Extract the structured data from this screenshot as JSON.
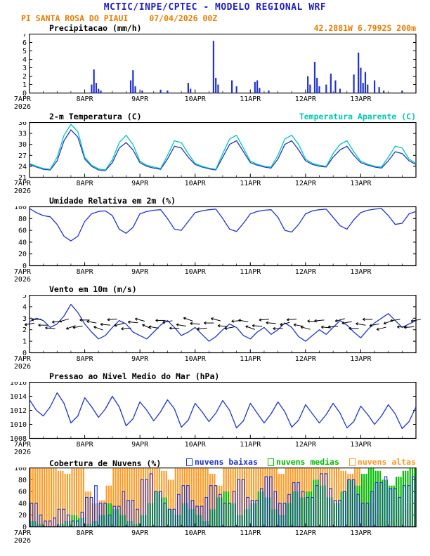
{
  "colors": {
    "title_blue": "#2020c8",
    "subtitle_orange": "#e87c00",
    "line_blue": "#2233cc",
    "apparent_cyan": "#00c8b4",
    "cloud_green": "#00bb00",
    "cloud_orange": "#ff9922"
  },
  "header": {
    "title": "MCTIC/INPE/CPTEC - MODELO REGIONAL WRF",
    "station": "PI SANTA ROSA DO PIAUI",
    "run": "07/04/2026 00Z",
    "coords": "42.2881W 6.7992S 200m"
  },
  "x_axis": {
    "labels": [
      "7APR",
      "8APR",
      "9APR",
      "10APR",
      "11APR",
      "12APR",
      "13APR"
    ],
    "year": "2026",
    "hours_total": 168,
    "tick_interval_hours": 24
  },
  "chart_data": [
    {
      "type": "bar",
      "title": "Precipitacao (mm/h)",
      "ylabel": "mm/h",
      "ylim": [
        0,
        7
      ],
      "yticks": [
        0,
        1,
        2,
        3,
        4,
        5,
        6,
        7
      ],
      "color": "#2233cc",
      "t": [
        27,
        28,
        29,
        30,
        31,
        44,
        45,
        46,
        49,
        57,
        60,
        69,
        70,
        80,
        81,
        82,
        88,
        90,
        98,
        99,
        100,
        104,
        121,
        122,
        124,
        125,
        126,
        129,
        131,
        133,
        135,
        141,
        143,
        144,
        145,
        146,
        147,
        150,
        152,
        154,
        162
      ],
      "v": [
        1.0,
        2.8,
        1.2,
        0.5,
        0.3,
        1.5,
        2.7,
        0.8,
        0.3,
        0.4,
        0.3,
        1.2,
        0.5,
        6.2,
        1.8,
        1.0,
        1.5,
        0.8,
        1.3,
        1.5,
        0.6,
        0.3,
        2.0,
        1.0,
        3.7,
        1.8,
        0.8,
        1.0,
        2.3,
        1.5,
        0.5,
        2.2,
        4.8,
        3.0,
        1.2,
        2.5,
        1.0,
        1.5,
        0.7,
        0.3,
        0.3
      ]
    },
    {
      "type": "line",
      "title": "2-m Temperatura (C)",
      "legend_right": "Temperatura Aparente (C)",
      "ylim": [
        21,
        36
      ],
      "yticks": [
        21,
        24,
        27,
        30,
        33,
        36
      ],
      "step": 3,
      "series": [
        {
          "name": "2-m Temperatura (C)",
          "color": "#2233cc",
          "values": [
            24.5,
            23.8,
            23.2,
            23.0,
            25.5,
            31.0,
            34.0,
            32.0,
            26.0,
            24.0,
            23.0,
            22.8,
            25.0,
            29.0,
            30.5,
            28.5,
            25.0,
            24.0,
            23.5,
            23.2,
            26.0,
            29.5,
            29.0,
            26.5,
            24.5,
            23.8,
            23.3,
            23.0,
            26.5,
            30.0,
            31.0,
            28.0,
            25.0,
            24.3,
            23.8,
            23.5,
            26.0,
            30.0,
            31.0,
            28.5,
            25.5,
            24.5,
            24.0,
            23.8,
            26.5,
            28.5,
            29.5,
            27.0,
            25.0,
            24.3,
            23.8,
            23.5,
            25.5,
            28.0,
            27.5,
            25.5,
            24.5
          ]
        },
        {
          "name": "Temperatura Aparente (C)",
          "color": "#00c8b4",
          "values": [
            24.8,
            24.0,
            23.4,
            23.2,
            26.5,
            32.5,
            35.5,
            33.5,
            26.5,
            24.3,
            23.3,
            23.0,
            25.8,
            30.5,
            32.5,
            30.0,
            25.4,
            24.3,
            23.8,
            23.4,
            27.0,
            31.0,
            30.5,
            27.5,
            24.8,
            24.0,
            23.5,
            23.2,
            27.5,
            31.5,
            32.5,
            29.0,
            25.4,
            24.6,
            24.0,
            23.8,
            27.0,
            31.5,
            32.5,
            30.0,
            26.0,
            24.8,
            24.3,
            24.0,
            27.5,
            30.0,
            31.0,
            28.0,
            25.4,
            24.6,
            24.0,
            23.8,
            26.5,
            29.5,
            29.0,
            26.0,
            24.8
          ]
        }
      ]
    },
    {
      "type": "line",
      "title": "Umidade Relativa em 2m (%)",
      "ylim": [
        0,
        100
      ],
      "yticks": [
        0,
        20,
        40,
        60,
        80,
        100
      ],
      "step": 3,
      "series": [
        {
          "name": "Umidade Relativa",
          "color": "#2233cc",
          "values": [
            97,
            90,
            85,
            83,
            70,
            50,
            42,
            50,
            75,
            88,
            92,
            93,
            85,
            62,
            55,
            65,
            88,
            92,
            94,
            95,
            80,
            62,
            60,
            75,
            90,
            93,
            95,
            96,
            80,
            62,
            58,
            72,
            88,
            92,
            94,
            95,
            82,
            60,
            57,
            70,
            88,
            93,
            95,
            96,
            82,
            68,
            62,
            78,
            90,
            94,
            96,
            97,
            85,
            70,
            72,
            88,
            92
          ]
        }
      ]
    },
    {
      "type": "line-barbs",
      "title": "Vento em 10m (m/s)",
      "ylim": [
        0,
        5
      ],
      "yticks": [
        0,
        1,
        2,
        3,
        4,
        5
      ],
      "step": 3,
      "dirs_deg": [
        190,
        185,
        180,
        175,
        185,
        195,
        200,
        190,
        180,
        170,
        160,
        175,
        185,
        195,
        185,
        175,
        165,
        155,
        170,
        180,
        190,
        180,
        170,
        160,
        175,
        185,
        180,
        165,
        175,
        190,
        185,
        170,
        160,
        175,
        185,
        175,
        180,
        195,
        185,
        170,
        165,
        175,
        185,
        175,
        185,
        195,
        190,
        180,
        170,
        180,
        190,
        195,
        200,
        190,
        180,
        185,
        190
      ],
      "series": [
        {
          "name": "Vento em 10m",
          "color": "#2233cc",
          "values": [
            2.7,
            3.0,
            2.8,
            2.2,
            2.5,
            3.2,
            4.2,
            3.5,
            2.5,
            1.8,
            1.2,
            1.5,
            2.2,
            2.8,
            2.5,
            1.8,
            1.5,
            1.2,
            1.8,
            2.4,
            2.8,
            2.2,
            1.5,
            1.8,
            2.2,
            1.6,
            1.0,
            1.4,
            2.0,
            2.5,
            2.2,
            1.5,
            1.2,
            1.8,
            2.2,
            1.6,
            2.0,
            2.6,
            2.2,
            1.4,
            1.0,
            1.5,
            2.0,
            1.6,
            2.2,
            2.8,
            2.4,
            1.8,
            1.3,
            2.0,
            2.6,
            3.0,
            3.4,
            2.8,
            2.2,
            2.5,
            2.8
          ]
        }
      ]
    },
    {
      "type": "line",
      "title": "Pressao ao Nivel Medio do Mar (hPa)",
      "ylim": [
        1008,
        1016
      ],
      "yticks": [
        1008,
        1010,
        1012,
        1014,
        1016
      ],
      "step": 3,
      "series": [
        {
          "name": "Pressao ao Nivel Medio do Mar",
          "color": "#2233cc",
          "values": [
            1013.5,
            1012.0,
            1011.2,
            1012.5,
            1014.5,
            1013.0,
            1010.2,
            1011.2,
            1013.8,
            1012.5,
            1011.0,
            1012.2,
            1014.0,
            1012.5,
            1009.8,
            1010.8,
            1013.2,
            1012.0,
            1010.5,
            1011.8,
            1013.5,
            1012.2,
            1009.6,
            1010.6,
            1013.0,
            1011.8,
            1010.4,
            1011.6,
            1013.4,
            1012.0,
            1009.5,
            1010.5,
            1013.0,
            1011.6,
            1010.2,
            1011.5,
            1013.2,
            1011.8,
            1009.6,
            1010.6,
            1012.8,
            1011.5,
            1010.2,
            1011.4,
            1013.0,
            1011.6,
            1009.5,
            1010.4,
            1012.6,
            1011.4,
            1010.0,
            1011.2,
            1012.8,
            1011.5,
            1009.4,
            1010.4,
            1012.5
          ]
        }
      ]
    },
    {
      "type": "cloud",
      "title": "Cobertura de Nuvens (%)",
      "ylim": [
        0,
        100
      ],
      "yticks": [
        0,
        20,
        40,
        60,
        80,
        100
      ],
      "step": 3,
      "series": [
        {
          "name": "nuvens baixas",
          "color": "#2233cc",
          "values": [
            40,
            20,
            10,
            15,
            30,
            20,
            10,
            25,
            50,
            70,
            40,
            20,
            35,
            60,
            45,
            30,
            80,
            90,
            60,
            40,
            30,
            55,
            70,
            45,
            35,
            50,
            70,
            55,
            40,
            60,
            80,
            50,
            45,
            65,
            85,
            60,
            40,
            55,
            75,
            60,
            50,
            70,
            90,
            65,
            45,
            60,
            80,
            55,
            40,
            60,
            75,
            85,
            65,
            50,
            70,
            85,
            60
          ]
        },
        {
          "name": "nuvens medias",
          "color": "#00bb00",
          "values": [
            10,
            5,
            0,
            0,
            5,
            10,
            20,
            15,
            5,
            10,
            20,
            40,
            30,
            20,
            10,
            5,
            20,
            40,
            60,
            50,
            30,
            20,
            40,
            30,
            20,
            10,
            30,
            50,
            60,
            40,
            20,
            30,
            40,
            60,
            50,
            30,
            20,
            40,
            60,
            50,
            60,
            80,
            70,
            50,
            40,
            60,
            80,
            70,
            90,
            100,
            95,
            80,
            70,
            85,
            95,
            100,
            95
          ]
        },
        {
          "name": "nuvens altas",
          "color": "#ff9922",
          "values": [
            100,
            100,
            100,
            100,
            95,
            90,
            100,
            100,
            60,
            40,
            45,
            70,
            100,
            100,
            100,
            100,
            100,
            100,
            100,
            95,
            80,
            100,
            100,
            100,
            100,
            100,
            90,
            70,
            100,
            100,
            100,
            100,
            100,
            100,
            100,
            100,
            90,
            100,
            100,
            100,
            100,
            100,
            100,
            100,
            100,
            95,
            90,
            100,
            80,
            40,
            20,
            10,
            10,
            20,
            30,
            40,
            50
          ]
        }
      ]
    }
  ]
}
